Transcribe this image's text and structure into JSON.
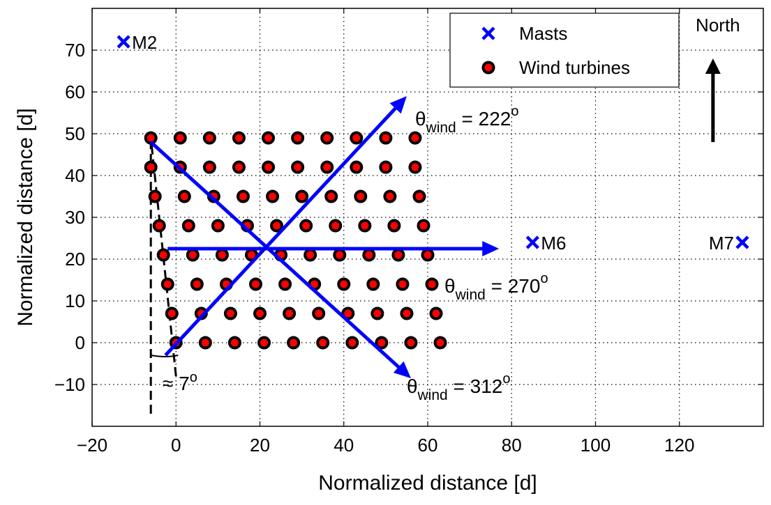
{
  "chart_data": {
    "type": "scatter",
    "xlabel": "Normalized distance [d]",
    "ylabel": "Normalized distance [d]",
    "xlim": [
      -20,
      140
    ],
    "ylim": [
      -20,
      80
    ],
    "xticks": [
      -20,
      0,
      20,
      40,
      60,
      80,
      100,
      120
    ],
    "yticks": [
      -10,
      0,
      10,
      20,
      30,
      40,
      50,
      60,
      70
    ],
    "xtick_labels": [
      "−20",
      "0",
      "20",
      "40",
      "60",
      "80",
      "100",
      "120"
    ],
    "ytick_labels": [
      "−10",
      "0",
      "10",
      "20",
      "30",
      "40",
      "50",
      "60",
      "70"
    ],
    "grid": true,
    "legend": {
      "position": "top-right",
      "entries": [
        {
          "label": "Masts",
          "marker": "x",
          "color": "#0000ff"
        },
        {
          "label": "Wind turbines",
          "marker": "o",
          "color": "#ff0000",
          "edge": "#000000"
        }
      ]
    },
    "masts": [
      {
        "label": "M2",
        "x": -12.5,
        "y": 72
      },
      {
        "label": "M6",
        "x": 85,
        "y": 24
      },
      {
        "label": "M7",
        "x": 135,
        "y": 24
      }
    ],
    "turbine_rows": [
      {
        "y": 0,
        "x_start": 0,
        "spacing": 7,
        "count": 10
      },
      {
        "y": 7,
        "x_start": -1,
        "spacing": 7,
        "count": 10
      },
      {
        "y": 14,
        "x_start": -2,
        "spacing": 7,
        "count": 10
      },
      {
        "y": 21,
        "x_start": -3,
        "spacing": 7,
        "count": 10
      },
      {
        "y": 28,
        "x_start": -4,
        "spacing": 7,
        "count": 10
      },
      {
        "y": 35,
        "x_start": -5,
        "spacing": 7,
        "count": 10
      },
      {
        "y": 42,
        "x_start": -6,
        "spacing": 7,
        "count": 10
      },
      {
        "y": 49,
        "x_start": -6,
        "spacing": 7,
        "count": 10
      }
    ],
    "wind_arrows": [
      {
        "x_from": -2.5,
        "y_from": -3,
        "x_to": 55,
        "y_to": 59
      },
      {
        "x_from": -6,
        "y_from": 48,
        "x_to": 56,
        "y_to": -8.5
      },
      {
        "x_from": -2,
        "y_from": 22.5,
        "x_to": 77,
        "y_to": 22.5
      }
    ],
    "wind_labels": [
      {
        "main": "θ",
        "sub": "wind",
        "value": " = 222",
        "sup": "o",
        "x": 57,
        "y": 52
      },
      {
        "main": "θ",
        "sub": "wind",
        "value": " = 270",
        "sup": "o",
        "x": 64,
        "y": 12
      },
      {
        "main": "θ",
        "sub": "wind",
        "value": " = 312",
        "sup": "o",
        "x": 55,
        "y": -12
      }
    ],
    "north_arrow": {
      "label": "North",
      "x": 128,
      "y_from": 48,
      "y_to": 68
    },
    "angle_annotation": {
      "text": "≈ 7",
      "sup": "o",
      "vertical_line": {
        "x": -6,
        "y_from": -17,
        "y_to": 49
      },
      "tilted_line": {
        "x_from": 0,
        "y_from": -8,
        "x_to": -6,
        "y_to": 49
      },
      "arc_end": {
        "x": 0.5,
        "y": -3
      }
    }
  }
}
